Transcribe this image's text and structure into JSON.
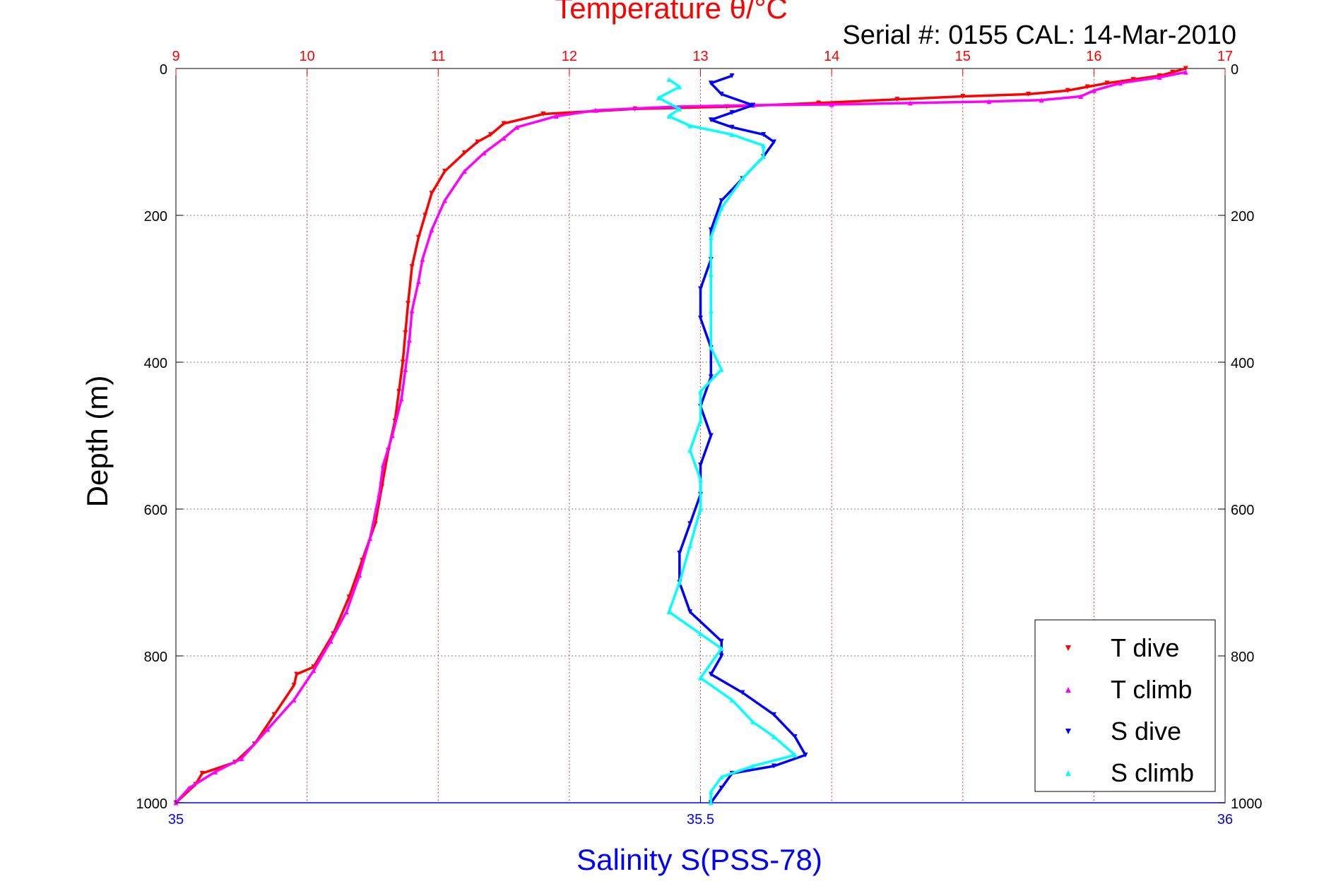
{
  "chart_data": {
    "type": "scatter",
    "title": "Temperature θ/°C",
    "subtitle": "Serial #: 0155  CAL: 14-Mar-2010",
    "ylabel": "Depth (m)",
    "xlabel_bottom": "Salinity S(PSS-78)",
    "xlabel_top": "Temperature θ/°C",
    "ylim": [
      1000,
      0
    ],
    "y_reversed": true,
    "y_ticks": [
      "0",
      "200",
      "400",
      "600",
      "800",
      "1000"
    ],
    "x_top_lim": [
      9,
      17
    ],
    "x_top_ticks": [
      "9",
      "10",
      "11",
      "12",
      "13",
      "14",
      "15",
      "16",
      "17"
    ],
    "x_bottom_lim": [
      35,
      36
    ],
    "x_bottom_ticks": [
      "35",
      "35.5",
      "36"
    ],
    "grid": true,
    "legend_position": "bottom-right",
    "colors": {
      "title": "#ff0000",
      "salinity_axis": "#0000ff",
      "grid": "#7f7f7f"
    },
    "series": [
      {
        "name": "T dive",
        "axis": "temperature",
        "marker": "triangle-down",
        "color": "#ff0000",
        "points": [
          [
            16.7,
            0
          ],
          [
            16.6,
            5
          ],
          [
            16.5,
            10
          ],
          [
            16.3,
            15
          ],
          [
            16.1,
            20
          ],
          [
            15.95,
            25
          ],
          [
            15.8,
            30
          ],
          [
            15.5,
            35
          ],
          [
            15,
            38
          ],
          [
            14.5,
            42
          ],
          [
            13.9,
            47
          ],
          [
            13.2,
            52
          ],
          [
            12.5,
            55
          ],
          [
            11.8,
            62
          ],
          [
            11.5,
            75
          ],
          [
            11.4,
            90
          ],
          [
            11.3,
            100
          ],
          [
            11.2,
            115
          ],
          [
            11.05,
            140
          ],
          [
            10.95,
            170
          ],
          [
            10.9,
            200
          ],
          [
            10.85,
            230
          ],
          [
            10.8,
            270
          ],
          [
            10.77,
            320
          ],
          [
            10.75,
            360
          ],
          [
            10.73,
            400
          ],
          [
            10.7,
            440
          ],
          [
            10.67,
            480
          ],
          [
            10.62,
            520
          ],
          [
            10.57,
            570
          ],
          [
            10.52,
            620
          ],
          [
            10.42,
            670
          ],
          [
            10.32,
            720
          ],
          [
            10.2,
            770
          ],
          [
            10.05,
            815
          ],
          [
            9.92,
            825
          ],
          [
            9.9,
            840
          ],
          [
            9.75,
            880
          ],
          [
            9.6,
            920
          ],
          [
            9.45,
            945
          ],
          [
            9.2,
            960
          ],
          [
            9.15,
            975
          ],
          [
            9.0,
            1000
          ]
        ]
      },
      {
        "name": "T climb",
        "axis": "temperature",
        "marker": "triangle-up",
        "color": "#ff00ff",
        "points": [
          [
            16.7,
            5
          ],
          [
            16.5,
            12
          ],
          [
            16.2,
            20
          ],
          [
            16.0,
            30
          ],
          [
            15.9,
            38
          ],
          [
            15.6,
            43
          ],
          [
            15.2,
            45
          ],
          [
            14.6,
            47
          ],
          [
            14.0,
            49
          ],
          [
            13.4,
            50
          ],
          [
            12.8,
            52
          ],
          [
            12.2,
            57
          ],
          [
            11.9,
            65
          ],
          [
            11.6,
            80
          ],
          [
            11.5,
            95
          ],
          [
            11.35,
            115
          ],
          [
            11.2,
            140
          ],
          [
            11.05,
            180
          ],
          [
            10.95,
            220
          ],
          [
            10.88,
            260
          ],
          [
            10.85,
            290
          ],
          [
            10.8,
            330
          ],
          [
            10.78,
            370
          ],
          [
            10.75,
            410
          ],
          [
            10.72,
            450
          ],
          [
            10.65,
            500
          ],
          [
            10.58,
            540
          ],
          [
            10.55,
            580
          ],
          [
            10.48,
            640
          ],
          [
            10.4,
            690
          ],
          [
            10.3,
            740
          ],
          [
            10.18,
            780
          ],
          [
            10.05,
            820
          ],
          [
            9.9,
            860
          ],
          [
            9.7,
            900
          ],
          [
            9.5,
            940
          ],
          [
            9.3,
            958
          ],
          [
            9.1,
            980
          ],
          [
            9.0,
            1000
          ]
        ]
      },
      {
        "name": "S dive",
        "axis": "salinity",
        "marker": "triangle-down",
        "color": "#0000ff",
        "points": [
          [
            35.53,
            10
          ],
          [
            35.51,
            20
          ],
          [
            35.52,
            35
          ],
          [
            35.55,
            50
          ],
          [
            35.53,
            60
          ],
          [
            35.51,
            70
          ],
          [
            35.53,
            80
          ],
          [
            35.56,
            90
          ],
          [
            35.57,
            100
          ],
          [
            35.56,
            120
          ],
          [
            35.54,
            150
          ],
          [
            35.52,
            180
          ],
          [
            35.51,
            220
          ],
          [
            35.51,
            260
          ],
          [
            35.5,
            300
          ],
          [
            35.5,
            340
          ],
          [
            35.51,
            380
          ],
          [
            35.51,
            420
          ],
          [
            35.5,
            460
          ],
          [
            35.51,
            500
          ],
          [
            35.5,
            540
          ],
          [
            35.5,
            580
          ],
          [
            35.49,
            620
          ],
          [
            35.48,
            660
          ],
          [
            35.48,
            700
          ],
          [
            35.49,
            740
          ],
          [
            35.52,
            780
          ],
          [
            35.52,
            800
          ],
          [
            35.51,
            825
          ],
          [
            35.54,
            850
          ],
          [
            35.57,
            880
          ],
          [
            35.59,
            910
          ],
          [
            35.6,
            935
          ],
          [
            35.57,
            950
          ],
          [
            35.53,
            960
          ],
          [
            35.52,
            980
          ],
          [
            35.51,
            1000
          ]
        ]
      },
      {
        "name": "S climb",
        "axis": "salinity",
        "marker": "triangle-up",
        "color": "#00ffff",
        "points": [
          [
            35.47,
            15
          ],
          [
            35.48,
            25
          ],
          [
            35.46,
            40
          ],
          [
            35.48,
            55
          ],
          [
            35.47,
            65
          ],
          [
            35.49,
            78
          ],
          [
            35.53,
            90
          ],
          [
            35.56,
            105
          ],
          [
            35.56,
            120
          ],
          [
            35.54,
            150
          ],
          [
            35.52,
            190
          ],
          [
            35.51,
            230
          ],
          [
            35.51,
            280
          ],
          [
            35.51,
            330
          ],
          [
            35.51,
            380
          ],
          [
            35.52,
            410
          ],
          [
            35.5,
            440
          ],
          [
            35.5,
            480
          ],
          [
            35.49,
            520
          ],
          [
            35.5,
            560
          ],
          [
            35.5,
            600
          ],
          [
            35.49,
            650
          ],
          [
            35.48,
            700
          ],
          [
            35.47,
            740
          ],
          [
            35.5,
            770
          ],
          [
            35.52,
            790
          ],
          [
            35.5,
            830
          ],
          [
            35.53,
            860
          ],
          [
            35.55,
            890
          ],
          [
            35.57,
            910
          ],
          [
            35.59,
            935
          ],
          [
            35.55,
            950
          ],
          [
            35.52,
            965
          ],
          [
            35.51,
            985
          ],
          [
            35.51,
            1000
          ]
        ]
      }
    ]
  }
}
